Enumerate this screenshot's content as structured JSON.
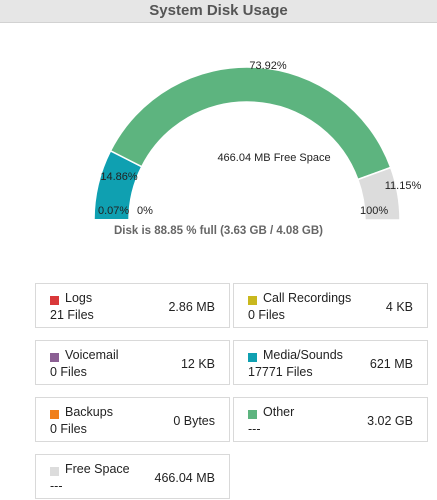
{
  "header": {
    "title": "System Disk Usage"
  },
  "gauge": {
    "free_space_label": "466.04 MB Free Space",
    "start_label": "0.07%",
    "zero_label": "0%",
    "end_label": "100%",
    "segments": [
      {
        "label": "0.07%",
        "percent": 0.07,
        "color": "#2d9fbd"
      },
      {
        "label": "14.86%",
        "percent": 14.86,
        "color": "#0fa0b1"
      },
      {
        "label": "73.92%",
        "percent": 73.92,
        "color": "#5db47f"
      },
      {
        "label": "11.15%",
        "percent": 11.15,
        "color": "#dcdcdc"
      }
    ]
  },
  "summary": {
    "text": "Disk is 88.85 % full (3.63 GB / 4.08 GB)"
  },
  "cards": [
    {
      "name": "Logs",
      "files": "21 Files",
      "size": "2.86 MB",
      "color": "#d9383a"
    },
    {
      "name": "Call Recordings",
      "files": "0 Files",
      "size": "4 KB",
      "color": "#c9b81e"
    },
    {
      "name": "Voicemail",
      "files": "0 Files",
      "size": "12 KB",
      "color": "#8b5f93"
    },
    {
      "name": "Media/Sounds",
      "files": "17771 Files",
      "size": "621 MB",
      "color": "#0fa0b1"
    },
    {
      "name": "Backups",
      "files": "0 Files",
      "size": "0 Bytes",
      "color": "#f07f1a"
    },
    {
      "name": "Other",
      "files": "---",
      "size": "3.02 GB",
      "color": "#5db47f"
    },
    {
      "name": "Free Space",
      "files": "---",
      "size": "466.04 MB",
      "color": "#dcdcdc"
    }
  ]
}
